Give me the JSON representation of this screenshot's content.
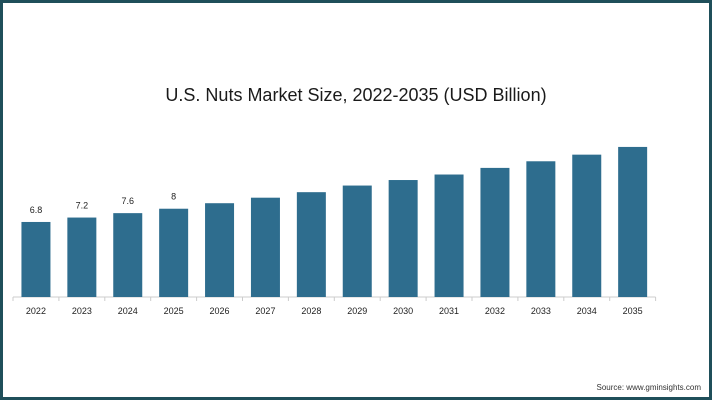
{
  "chart_data": {
    "type": "bar",
    "title": "U.S. Nuts Market Size, 2022-2035 (USD Billion)",
    "xlabel": "",
    "ylabel": "",
    "categories": [
      "2022",
      "2023",
      "2024",
      "2025",
      "2026",
      "2027",
      "2028",
      "2029",
      "2030",
      "2031",
      "2032",
      "2033",
      "2034",
      "2035"
    ],
    "values": [
      6.8,
      7.2,
      7.6,
      8.0,
      8.5,
      9.0,
      9.5,
      10.1,
      10.6,
      11.1,
      11.7,
      12.3,
      12.9,
      13.6
    ],
    "data_labels": [
      "6.8",
      "7.2",
      "7.6",
      "8",
      "",
      "",
      "",
      "",
      "",
      "",
      "",
      "",
      "",
      ""
    ],
    "ylim": [
      0,
      14.5
    ],
    "grid": false,
    "legend": "none",
    "bar_color": "#2e6d8e"
  },
  "source": "Source: www.gminsights.com"
}
